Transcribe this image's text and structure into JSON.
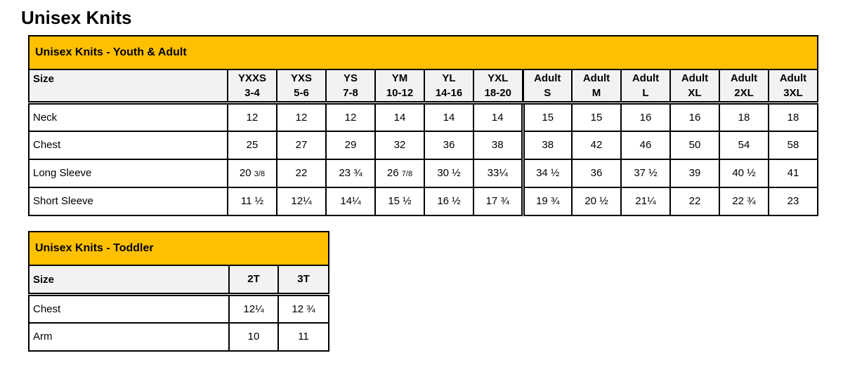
{
  "page": {
    "title": "Unisex Knits"
  },
  "colors": {
    "caption_bg": "#FFC000",
    "header_bg": "#F2F2F2",
    "border": "#000000",
    "text": "#000000"
  },
  "tables": [
    {
      "caption": "Unisex Knits - Youth & Adult",
      "size_label": "Size",
      "adult_divider_col": 6,
      "columns": [
        {
          "label": "YXXS",
          "sub": "3-4"
        },
        {
          "label": "YXS",
          "sub": "5-6"
        },
        {
          "label": "YS",
          "sub": "7-8"
        },
        {
          "label": "YM",
          "sub": "10-12"
        },
        {
          "label": "YL",
          "sub": "14-16"
        },
        {
          "label": "YXL",
          "sub": "18-20"
        },
        {
          "label": "Adult",
          "sub": "S"
        },
        {
          "label": "Adult",
          "sub": "M"
        },
        {
          "label": "Adult",
          "sub": "L"
        },
        {
          "label": "Adult",
          "sub": "XL"
        },
        {
          "label": "Adult",
          "sub": "2XL"
        },
        {
          "label": "Adult",
          "sub": "3XL"
        }
      ],
      "rows": [
        {
          "label": "Neck",
          "values": [
            "12",
            "12",
            "12",
            "14",
            "14",
            "14",
            "15",
            "15",
            "16",
            "16",
            "18",
            "18"
          ]
        },
        {
          "label": "Chest",
          "values": [
            "25",
            "27",
            "29",
            "32",
            "36",
            "38",
            "38",
            "42",
            "46",
            "50",
            "54",
            "58"
          ]
        },
        {
          "label": "Long Sleeve",
          "values": [
            "20 3/8",
            "22",
            "23 ¾",
            "26 7/8",
            "30 ½",
            "33¼",
            "34 ½",
            "36",
            "37 ½",
            "39",
            "40 ½",
            "41"
          ]
        },
        {
          "label": "Short Sleeve",
          "values": [
            "11 ½",
            "12¼",
            "14¼",
            "15 ½",
            "16 ½",
            "17 ¾",
            "19 ¾",
            "20 ½",
            "21¼",
            "22",
            "22 ¾",
            "23"
          ]
        }
      ]
    },
    {
      "caption": "Unisex Knits - Toddler",
      "size_label": "Size",
      "columns": [
        {
          "label": "2T"
        },
        {
          "label": "3T"
        }
      ],
      "rows": [
        {
          "label": "Chest",
          "values": [
            "12¼",
            "12 ¾"
          ]
        },
        {
          "label": "Arm",
          "values": [
            "10",
            "11"
          ]
        }
      ]
    }
  ]
}
